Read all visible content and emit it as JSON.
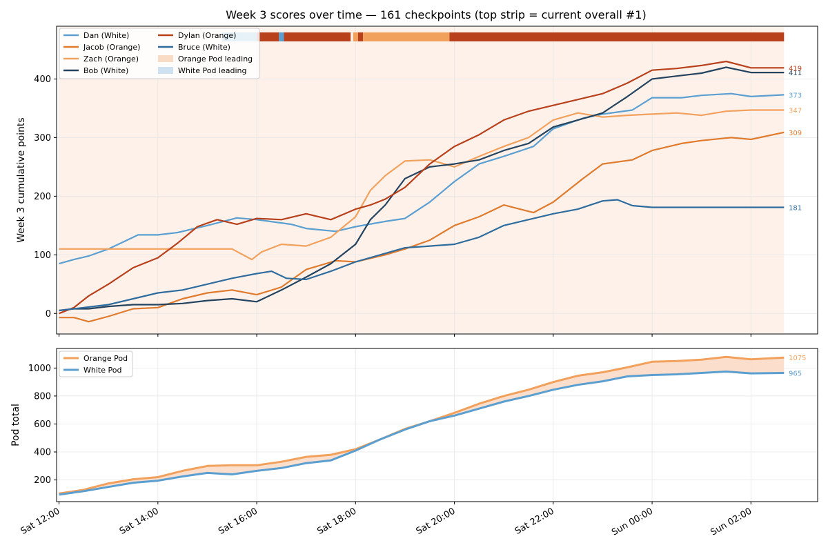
{
  "chart_data": [
    {
      "type": "line",
      "title": "Week 3 scores over time  —  161 checkpoints  (top strip = current overall #1)",
      "ylabel": "Week 3 cumulative points",
      "ylim": [
        -35,
        490
      ],
      "yticks": [
        0,
        100,
        200,
        300,
        400
      ],
      "xlim_hours": [
        -0.05,
        15.35
      ],
      "xticks": [
        {
          "label": "Sat 12:00",
          "h": 0
        },
        {
          "label": "Sat 14:00",
          "h": 2
        },
        {
          "label": "Sat 16:00",
          "h": 4
        },
        {
          "label": "Sat 18:00",
          "h": 6
        },
        {
          "label": "Sat 20:00",
          "h": 8
        },
        {
          "label": "Sat 22:00",
          "h": 10
        },
        {
          "label": "Sun 00:00",
          "h": 12
        },
        {
          "label": "Sun 02:00",
          "h": 14
        }
      ],
      "legend": "top-left",
      "grid": true,
      "orange_pod_leading_span_hours": [
        0,
        14.67
      ],
      "leader_strip": [
        {
          "from": 3.3,
          "to": 4.0,
          "leader": "Dan (White)"
        },
        {
          "from": 4.0,
          "to": 4.45,
          "leader": "Dylan (Orange)"
        },
        {
          "from": 4.45,
          "to": 4.55,
          "leader": "Dan (White)"
        },
        {
          "from": 4.55,
          "to": 5.9,
          "leader": "Dylan (Orange)"
        },
        {
          "from": 5.95,
          "to": 6.05,
          "leader": "Zach (Orange)"
        },
        {
          "from": 6.05,
          "to": 6.15,
          "leader": "Dylan (Orange)"
        },
        {
          "from": 6.15,
          "to": 7.9,
          "leader": "Zach (Orange)"
        },
        {
          "from": 7.9,
          "to": 14.67,
          "leader": "Dylan (Orange)"
        }
      ],
      "legend_extra": [
        {
          "name": "Orange Pod leading",
          "color": "#fadbc4"
        },
        {
          "name": "White Pod leading",
          "color": "#cfe2f2"
        }
      ],
      "series": [
        {
          "name": "Dan (White)",
          "color": "#5b9fd1",
          "final": 373,
          "x": [
            0,
            0.3,
            0.6,
            1.0,
            1.3,
            1.6,
            2.0,
            2.4,
            3.0,
            3.6,
            4.0,
            4.7,
            5.0,
            5.6,
            6.0,
            6.6,
            7.0,
            7.5,
            8.0,
            8.5,
            9.0,
            9.6,
            10.0,
            10.6,
            11.0,
            11.6,
            12.0,
            12.6,
            13.0,
            13.6,
            14.0,
            14.67
          ],
          "y": [
            85,
            92,
            98,
            110,
            122,
            134,
            134,
            138,
            150,
            163,
            160,
            152,
            145,
            140,
            148,
            157,
            162,
            190,
            225,
            255,
            268,
            285,
            315,
            333,
            340,
            347,
            368,
            368,
            372,
            375,
            370,
            373
          ]
        },
        {
          "name": "Jacob (Orange)",
          "color": "#e07b2d",
          "final": 309,
          "x": [
            0,
            0.3,
            0.6,
            1.0,
            1.5,
            2.0,
            2.5,
            3.0,
            3.5,
            4.0,
            4.5,
            5.0,
            5.6,
            6.0,
            6.6,
            7.0,
            7.5,
            8.0,
            8.5,
            9.0,
            9.6,
            10.0,
            10.6,
            11.0,
            11.6,
            12.0,
            12.6,
            13.0,
            13.6,
            14.0,
            14.67
          ],
          "y": [
            -7,
            -7,
            -14,
            -5,
            8,
            10,
            25,
            35,
            40,
            32,
            45,
            75,
            90,
            88,
            100,
            110,
            125,
            150,
            165,
            185,
            172,
            190,
            230,
            255,
            262,
            278,
            290,
            295,
            300,
            297,
            309
          ]
        },
        {
          "name": "Zach (Orange)",
          "color": "#f2a15d",
          "final": 347,
          "x": [
            0,
            0.5,
            1.0,
            1.5,
            2.0,
            2.5,
            3.0,
            3.5,
            3.9,
            4.1,
            4.5,
            5.0,
            5.5,
            6.0,
            6.3,
            6.6,
            7.0,
            7.5,
            7.8,
            8.0,
            8.5,
            9.0,
            9.5,
            10.0,
            10.5,
            11.0,
            11.5,
            12.0,
            12.5,
            13.0,
            13.5,
            14.0,
            14.67
          ],
          "y": [
            110,
            110,
            110,
            110,
            110,
            110,
            110,
            110,
            92,
            105,
            118,
            115,
            130,
            165,
            210,
            235,
            260,
            262,
            255,
            250,
            268,
            285,
            300,
            330,
            342,
            335,
            338,
            340,
            342,
            338,
            345,
            347,
            347
          ]
        },
        {
          "name": "Bob (White)",
          "color": "#24435e",
          "final": 411,
          "x": [
            0,
            0.3,
            0.6,
            1.0,
            1.5,
            2.0,
            2.5,
            3.0,
            3.5,
            4.0,
            4.5,
            5.0,
            5.5,
            6.0,
            6.3,
            6.6,
            7.0,
            7.5,
            8.0,
            8.5,
            9.0,
            9.5,
            10.0,
            10.5,
            11.0,
            11.5,
            12.0,
            12.5,
            13.0,
            13.5,
            14.0,
            14.67
          ],
          "y": [
            5,
            8,
            8,
            12,
            15,
            15,
            17,
            22,
            25,
            20,
            40,
            62,
            85,
            118,
            160,
            185,
            230,
            250,
            255,
            262,
            278,
            290,
            318,
            330,
            342,
            370,
            400,
            405,
            410,
            420,
            411,
            411
          ]
        },
        {
          "name": "Dylan (Orange)",
          "color": "#b8401a",
          "final": 419,
          "x": [
            0,
            0.3,
            0.6,
            1.0,
            1.5,
            2.0,
            2.4,
            2.8,
            3.2,
            3.6,
            4.0,
            4.5,
            5.0,
            5.5,
            6.0,
            6.3,
            6.6,
            7.0,
            7.5,
            8.0,
            8.5,
            9.0,
            9.5,
            10.0,
            10.5,
            11.0,
            11.5,
            12.0,
            12.5,
            13.0,
            13.5,
            14.0,
            14.67
          ],
          "y": [
            0,
            10,
            30,
            50,
            78,
            95,
            120,
            148,
            160,
            152,
            162,
            160,
            170,
            160,
            178,
            185,
            195,
            215,
            255,
            285,
            305,
            330,
            345,
            355,
            365,
            375,
            393,
            415,
            418,
            423,
            430,
            419,
            419
          ]
        },
        {
          "name": "Bruce (White)",
          "color": "#2f6c9e",
          "final": 181,
          "x": [
            0,
            0.5,
            1.0,
            1.5,
            2.0,
            2.5,
            3.0,
            3.5,
            4.0,
            4.3,
            4.6,
            5.0,
            5.5,
            6.0,
            6.5,
            7.0,
            7.5,
            8.0,
            8.5,
            9.0,
            9.5,
            10.0,
            10.5,
            11.0,
            11.3,
            11.6,
            12.0,
            12.5,
            13.0,
            13.5,
            14.0,
            14.67
          ],
          "y": [
            5,
            10,
            15,
            25,
            35,
            40,
            50,
            60,
            68,
            72,
            60,
            58,
            72,
            88,
            100,
            112,
            115,
            118,
            130,
            150,
            160,
            170,
            178,
            192,
            194,
            184,
            181,
            181,
            181,
            181,
            181,
            181
          ]
        }
      ]
    },
    {
      "type": "area",
      "ylabel": "Pod total",
      "ylim": [
        45,
        1140
      ],
      "yticks": [
        200,
        400,
        600,
        800,
        1000
      ],
      "legend": "top-left",
      "grid": true,
      "series": [
        {
          "name": "Orange Pod",
          "color": "#f2a15d",
          "final": 1075,
          "x": [
            0,
            0.5,
            1.0,
            1.5,
            2.0,
            2.5,
            3.0,
            3.5,
            4.0,
            4.5,
            5.0,
            5.5,
            6.0,
            6.5,
            7.0,
            7.5,
            8.0,
            8.5,
            9.0,
            9.5,
            10.0,
            10.5,
            11.0,
            11.5,
            12.0,
            12.5,
            13.0,
            13.5,
            14.0,
            14.67
          ],
          "y": [
            103,
            130,
            175,
            205,
            220,
            265,
            300,
            305,
            305,
            330,
            365,
            380,
            420,
            490,
            565,
            620,
            680,
            745,
            800,
            845,
            900,
            945,
            970,
            1005,
            1045,
            1050,
            1060,
            1080,
            1062,
            1075
          ]
        },
        {
          "name": "White Pod",
          "color": "#5b9fd1",
          "final": 965,
          "x": [
            0,
            0.5,
            1.0,
            1.5,
            2.0,
            2.5,
            3.0,
            3.5,
            4.0,
            4.5,
            5.0,
            5.5,
            6.0,
            6.5,
            7.0,
            7.5,
            8.0,
            8.5,
            9.0,
            9.5,
            10.0,
            10.5,
            11.0,
            11.5,
            12.0,
            12.5,
            13.0,
            13.5,
            14.0,
            14.67
          ],
          "y": [
            95,
            120,
            150,
            180,
            195,
            225,
            250,
            240,
            265,
            285,
            320,
            340,
            410,
            490,
            560,
            620,
            660,
            710,
            760,
            800,
            845,
            880,
            905,
            940,
            950,
            955,
            965,
            975,
            962,
            965
          ]
        }
      ]
    }
  ]
}
